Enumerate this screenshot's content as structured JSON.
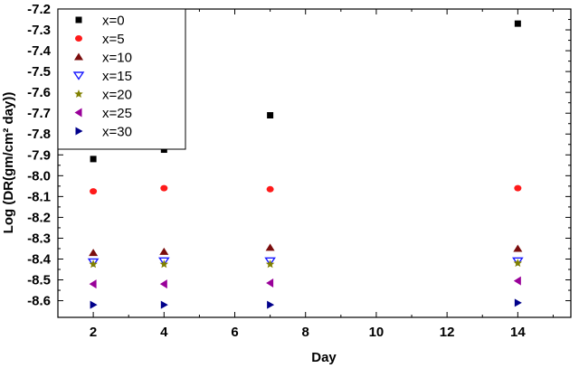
{
  "chart_data": {
    "type": "scatter",
    "xlabel": "Day",
    "ylabel": "Log (DR(gm/cm² day))",
    "xlim": [
      1,
      15.5
    ],
    "ylim": [
      -8.68,
      -7.2
    ],
    "x_ticks": [
      2,
      4,
      6,
      8,
      10,
      12,
      14
    ],
    "x_tick_labels": [
      "2",
      "4",
      "6",
      "8",
      "10",
      "12",
      "14"
    ],
    "y_ticks": [
      -7.2,
      -7.3,
      -7.4,
      -7.5,
      -7.6,
      -7.7,
      -7.8,
      -7.9,
      -8.0,
      -8.1,
      -8.2,
      -8.3,
      -8.4,
      -8.5,
      -8.6
    ],
    "y_tick_labels": [
      "-7.2",
      "-7.3",
      "-7.4",
      "-7.5",
      "-7.6",
      "-7.7",
      "-7.8",
      "-7.9",
      "-8.0",
      "-8.1",
      "-8.2",
      "-8.3",
      "-8.4",
      "-8.5",
      "-8.6"
    ],
    "grid": false,
    "legend_position": "top-left",
    "x": [
      2,
      4,
      7,
      14
    ],
    "series": [
      {
        "name": "x=0",
        "marker": "square",
        "color": "#000000",
        "values": [
          -7.92,
          -7.875,
          -7.71,
          -7.27
        ]
      },
      {
        "name": "x=5",
        "marker": "circle",
        "color": "#ff1a1a",
        "values": [
          -8.075,
          -8.06,
          -8.065,
          -8.06
        ]
      },
      {
        "name": "x=10",
        "marker": "triangle-up",
        "color": "#7b0d0d",
        "values": [
          -8.37,
          -8.365,
          -8.345,
          -8.35
        ]
      },
      {
        "name": "x=15",
        "marker": "triangle-down",
        "color": "#1a1aff",
        "values": [
          -8.415,
          -8.41,
          -8.41,
          -8.41
        ]
      },
      {
        "name": "x=20",
        "marker": "star",
        "color": "#808000",
        "values": [
          -8.425,
          -8.425,
          -8.425,
          -8.42
        ]
      },
      {
        "name": "x=25",
        "marker": "triangle-left",
        "color": "#990099",
        "values": [
          -8.52,
          -8.52,
          -8.515,
          -8.505
        ]
      },
      {
        "name": "x=30",
        "marker": "triangle-right",
        "color": "#00008b",
        "values": [
          -8.62,
          -8.62,
          -8.62,
          -8.61
        ]
      }
    ]
  }
}
